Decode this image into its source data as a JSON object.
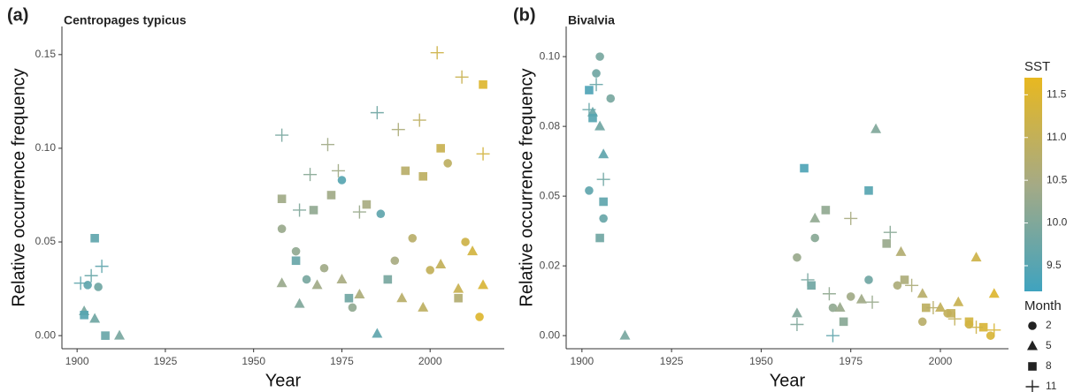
{
  "chart_data": [
    {
      "type": "scatter",
      "panel_label": "(a)",
      "title": "Centropages typicus",
      "xlabel": "Year",
      "ylabel": "Relative occurrence frequency",
      "xlim": [
        1895.7,
        2021
      ],
      "xticks": [
        1900,
        1925,
        1950,
        1975,
        2000
      ],
      "ylim": [
        -0.007,
        0.165
      ],
      "yticks": [
        {
          "value": 0,
          "label": "0.00"
        },
        {
          "value": 0.05,
          "label": "0.05"
        },
        {
          "value": 0.1,
          "label": "0.10"
        },
        {
          "value": 0.15,
          "label": "0.15"
        }
      ],
      "series": [
        {
          "name": "2",
          "shape": "circle",
          "x": [
            1903,
            1906,
            1958,
            1962,
            1965,
            1970,
            1975,
            1978,
            1986,
            1990,
            1995,
            2000,
            2005,
            2010,
            2014
          ],
          "values": [
            0.027,
            0.026,
            0.057,
            0.045,
            0.03,
            0.036,
            0.083,
            0.015,
            0.065,
            0.04,
            0.052,
            0.035,
            0.092,
            0.05,
            0.01
          ],
          "sst": [
            9.6,
            9.8,
            10.3,
            10.2,
            9.9,
            10.4,
            9.5,
            10.2,
            9.6,
            10.5,
            10.8,
            11,
            10.9,
            11.2,
            11.5
          ]
        },
        {
          "name": "5",
          "shape": "triangle",
          "x": [
            1902,
            1905,
            1912,
            1958,
            1963,
            1968,
            1975,
            1980,
            1985,
            1992,
            1998,
            2003,
            2008,
            2012,
            2015
          ],
          "values": [
            0.013,
            0.009,
            0,
            0.028,
            0.017,
            0.027,
            0.03,
            0.022,
            0.001,
            0.02,
            0.015,
            0.038,
            0.025,
            0.045,
            0.027
          ],
          "sst": [
            9.9,
            9.8,
            9.9,
            10.3,
            10,
            10.4,
            10.5,
            10.6,
            9.6,
            10.8,
            10.9,
            11,
            11.1,
            11.3,
            11.4
          ]
        },
        {
          "name": "8",
          "shape": "square",
          "x": [
            1902,
            1905,
            1908,
            1958,
            1962,
            1967,
            1972,
            1977,
            1982,
            1988,
            1993,
            1998,
            2003,
            2008,
            2015
          ],
          "values": [
            0.011,
            0.052,
            0,
            0.073,
            0.04,
            0.067,
            0.075,
            0.02,
            0.07,
            0.03,
            0.088,
            0.085,
            0.1,
            0.02,
            0.134
          ],
          "sst": [
            9.5,
            9.6,
            9.7,
            10.4,
            9.7,
            10.2,
            10.4,
            9.8,
            10.5,
            9.9,
            10.8,
            10.9,
            11.1,
            10.7,
            11.5
          ]
        },
        {
          "name": "11",
          "shape": "cross",
          "x": [
            1901,
            1904,
            1907,
            1958,
            1963,
            1966,
            1971,
            1974,
            1980,
            1985,
            1991,
            1997,
            2002,
            2009,
            2015
          ],
          "values": [
            0.028,
            0.032,
            0.037,
            0.107,
            0.067,
            0.086,
            0.102,
            0.088,
            0.066,
            0.119,
            0.11,
            0.115,
            0.151,
            0.138,
            0.097
          ],
          "sst": [
            9.6,
            9.7,
            9.6,
            9.9,
            10,
            10.1,
            10.4,
            10.4,
            10.3,
            9.8,
            10.6,
            10.9,
            11.2,
            11.1,
            11.3
          ]
        }
      ]
    },
    {
      "type": "scatter",
      "panel_label": "(b)",
      "title": "Bivalvia",
      "xlabel": "Year",
      "ylabel": "Relative occurrence frequency",
      "xlim": [
        1895.6,
        2019
      ],
      "xticks": [
        1900,
        1925,
        1950,
        1975,
        2000
      ],
      "ylim": [
        -0.0047,
        0.1108
      ],
      "yticks": [
        {
          "value": 0,
          "label": "0.00"
        },
        {
          "value": 0.025,
          "label": "0.02"
        },
        {
          "value": 0.05,
          "label": "0.05"
        },
        {
          "value": 0.075,
          "label": "0.08"
        },
        {
          "value": 0.1,
          "label": "0.10"
        }
      ],
      "series": [
        {
          "name": "2",
          "shape": "circle",
          "x": [
            1902,
            1904,
            1905,
            1906,
            1908,
            1960,
            1965,
            1970,
            1975,
            1980,
            1988,
            1995,
            2002,
            2008,
            2014
          ],
          "values": [
            0.052,
            0.094,
            0.1,
            0.042,
            0.085,
            0.028,
            0.035,
            0.01,
            0.014,
            0.02,
            0.018,
            0.005,
            0.008,
            0.004,
            0
          ],
          "sst": [
            9.6,
            9.8,
            9.9,
            9.7,
            9.9,
            10.3,
            10.1,
            10.2,
            10.4,
            9.8,
            10.6,
            10.8,
            11,
            11.2,
            11.4
          ]
        },
        {
          "name": "5",
          "shape": "triangle",
          "x": [
            1903,
            1905,
            1906,
            1912,
            1960,
            1965,
            1972,
            1978,
            1982,
            1989,
            1995,
            2000,
            2005,
            2010,
            2015
          ],
          "values": [
            0.08,
            0.075,
            0.065,
            0,
            0.008,
            0.042,
            0.01,
            0.013,
            0.074,
            0.03,
            0.015,
            0.01,
            0.012,
            0.028,
            0.015
          ],
          "sst": [
            9.7,
            9.8,
            9.6,
            9.9,
            10,
            10.2,
            10.3,
            10.4,
            10,
            10.7,
            10.8,
            11,
            11.1,
            11.2,
            11.5
          ]
        },
        {
          "name": "8",
          "shape": "square",
          "x": [
            1902,
            1903,
            1905,
            1906,
            1962,
            1964,
            1968,
            1973,
            1980,
            1985,
            1990,
            1996,
            2003,
            2008,
            2012
          ],
          "values": [
            0.088,
            0.078,
            0.035,
            0.048,
            0.06,
            0.018,
            0.045,
            0.005,
            0.052,
            0.033,
            0.02,
            0.01,
            0.008,
            0.005,
            0.003
          ],
          "sst": [
            9.4,
            9.5,
            9.8,
            9.6,
            9.4,
            9.8,
            10.2,
            10.1,
            9.5,
            10.3,
            10.6,
            10.9,
            11,
            11.3,
            11.4
          ]
        },
        {
          "name": "11",
          "shape": "cross",
          "x": [
            1902,
            1904,
            1906,
            1960,
            1963,
            1969,
            1975,
            1981,
            1986,
            1992,
            1998,
            2004,
            2010,
            2015,
            1970
          ],
          "values": [
            0.081,
            0.09,
            0.056,
            0.004,
            0.02,
            0.015,
            0.042,
            0.012,
            0.037,
            0.018,
            0.01,
            0.006,
            0.003,
            0.002,
            0
          ],
          "sst": [
            9.7,
            9.7,
            9.8,
            10,
            9.9,
            10.2,
            10.5,
            10.3,
            10.1,
            10.6,
            10.8,
            11,
            11.2,
            11.4,
            9.6
          ]
        }
      ],
      "colorbar": {
        "title": "SST",
        "lim": [
          9.2,
          11.7
        ],
        "colors": [
          "#3fa3bf",
          "#a5aa85",
          "#e8b820"
        ],
        "ticks": [
          9.5,
          {
            "value": 10,
            "label": "10.0"
          },
          10.5,
          {
            "value": 11,
            "label": "11.0"
          },
          11.5
        ]
      },
      "shape_legend_title": "Month"
    }
  ]
}
